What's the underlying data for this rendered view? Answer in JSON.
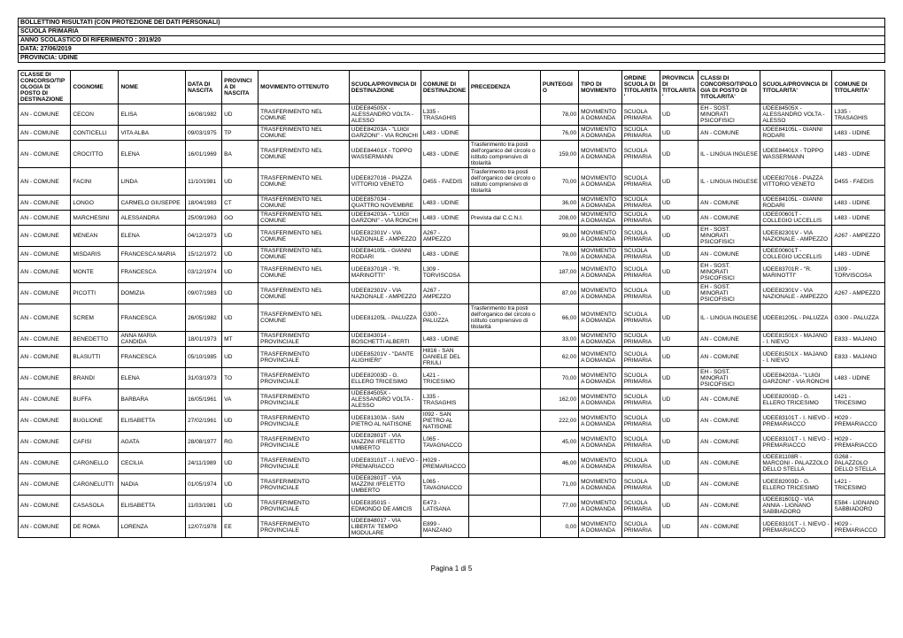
{
  "meta": [
    "BOLLETTINO RISULTATI (CON PROTEZIONE DEI DATI PERSONALI)",
    "SCUOLA PRIMARIA",
    "ANNO SCOLASTICO DI RIFERIMENTO : 2019/20",
    "DATA: 27/06/2019",
    "PROVINCIA: UDINE"
  ],
  "columns": [
    "CLASSE DI CONCORSO/TIPOLOGIA DI POSTO DI DESTINAZIONE",
    "COGNOME",
    "NOME",
    "DATA DI NASCITA",
    "PROVINCIA DI NASCITA",
    "MOVIMENTO OTTENUTO",
    "SCUOLA/PROVINCIA DI DESTINAZIONE",
    "COMUNE DI DESTINAZIONE",
    "PRECEDENZA",
    "PUNTEGGIO",
    "TIPO DI MOVIMENTO",
    "ORDINE SCUOLA DI TITOLARITA'",
    "PROVINCIA DI TITOLARITA'",
    "CLASSI DI CONCORSO/TIPOLOGIA DI POSTO DI TITOLARITA'",
    "SCUOLA/PROVINCIA DI TITOLARITA'",
    "COMUNE DI TITOLARITA'"
  ],
  "rows": [
    [
      "AN - COMUNE",
      "CECON",
      "ELISA",
      "16/08/1982",
      "UD",
      "TRASFERIMENTO NEL COMUNE",
      "UDEE84505X - ALESSANDRO VOLTA - ALESSO",
      "L335 - TRASAGHIS",
      "",
      "78,00",
      "MOVIMENTO A DOMANDA",
      "SCUOLA PRIMARIA",
      "UD",
      "EH - SOST. MINORATI PSICOFISICI",
      "UDEE84505X - ALESSANDRO VOLTA - ALESSO",
      "L335 - TRASAGHIS"
    ],
    [
      "AN - COMUNE",
      "CONTICELLI",
      "VITA ALBA",
      "09/03/1975",
      "TP",
      "TRASFERIMENTO NEL COMUNE",
      "UDEE84203A - \"LUIGI GARZONI\" - VIA RONCHI",
      "L483 - UDINE",
      "",
      "76,00",
      "MOVIMENTO A DOMANDA",
      "SCUOLA PRIMARIA",
      "UD",
      "AN - COMUNE",
      "UDEE84105L - GIANNI RODARI",
      "L483 - UDINE"
    ],
    [
      "AN - COMUNE",
      "CROCITTO",
      "ELENA",
      "16/01/1969",
      "BA",
      "TRASFERIMENTO NEL COMUNE",
      "UDEE84401X - TOPPO WASSERMANN",
      "L483 - UDINE",
      "Trasferimento tra posti dell'organico del circolo o istituto comprensivo di titolarità",
      "159,00",
      "MOVIMENTO A DOMANDA",
      "SCUOLA PRIMARIA",
      "UD",
      "IL - LINGUA INGLESE",
      "UDEE84401X - TOPPO WASSERMANN",
      "L483 - UDINE"
    ],
    [
      "AN - COMUNE",
      "FACINI",
      "LINDA",
      "11/10/1981",
      "UD",
      "TRASFERIMENTO NEL COMUNE",
      "UDEE827016 - PIAZZA VITTORIO VENETO",
      "D455 - FAEDIS",
      "Trasferimento tra posti dell'organico del circolo o istituto comprensivo di titolarità",
      "70,00",
      "MOVIMENTO A DOMANDA",
      "SCUOLA PRIMARIA",
      "UD",
      "IL - LINGUA INGLESE",
      "UDEE827016 - PIAZZA VITTORIO VENETO",
      "D455 - FAEDIS"
    ],
    [
      "AN - COMUNE",
      "LONGO",
      "CARMELO GIUSEPPE",
      "18/04/1983",
      "CT",
      "TRASFERIMENTO NEL COMUNE",
      "UDEE857034 - QUATTRO NOVEMBRE",
      "L483 - UDINE",
      "",
      "36,00",
      "MOVIMENTO A DOMANDA",
      "SCUOLA PRIMARIA",
      "UD",
      "AN - COMUNE",
      "UDEE84105L - GIANNI RODARI",
      "L483 - UDINE"
    ],
    [
      "AN - COMUNE",
      "MARCHESINI",
      "ALESSANDRA",
      "25/09/1963",
      "GO",
      "TRASFERIMENTO NEL COMUNE",
      "UDEE84203A - \"LUIGI GARZONI\" - VIA RONCHI",
      "L483 - UDINE",
      "Prevista dal C.C.N.I.",
      "208,00",
      "MOVIMENTO A DOMANDA",
      "SCUOLA PRIMARIA",
      "UD",
      "AN - COMUNE",
      "UDEE00601T - COLLEGIO UCCELLIS",
      "L483 - UDINE"
    ],
    [
      "AN - COMUNE",
      "MENEAN",
      "ELENA",
      "04/12/1973",
      "UD",
      "TRASFERIMENTO NEL COMUNE",
      "UDEE82301V - VIA NAZIONALE - AMPEZZO",
      "A267 - AMPEZZO",
      "",
      "99,00",
      "MOVIMENTO A DOMANDA",
      "SCUOLA PRIMARIA",
      "UD",
      "EH - SOST. MINORATI PSICOFISICI",
      "UDEE82301V - VIA NAZIONALE - AMPEZZO",
      "A267 - AMPEZZO"
    ],
    [
      "AN - COMUNE",
      "MISDARIS",
      "FRANCESCA MARIA",
      "15/12/1972",
      "UD",
      "TRASFERIMENTO NEL COMUNE",
      "UDEE84105L - GIANNI RODARI",
      "L483 - UDINE",
      "",
      "78,00",
      "MOVIMENTO A DOMANDA",
      "SCUOLA PRIMARIA",
      "UD",
      "AN - COMUNE",
      "UDEE00601T - COLLEGIO UCCELLIS",
      "L483 - UDINE"
    ],
    [
      "AN - COMUNE",
      "MONTE",
      "FRANCESCA",
      "03/12/1974",
      "UD",
      "TRASFERIMENTO NEL COMUNE",
      "UDEE83701R - \"R. MARINOTTI\"",
      "L309 - TORVISCOSA",
      "",
      "187,00",
      "MOVIMENTO A DOMANDA",
      "SCUOLA PRIMARIA",
      "UD",
      "EH - SOST. MINORATI PSICOFISICI",
      "UDEE83701R - \"R. MARINOTTI\"",
      "L309 - TORVISCOSA"
    ],
    [
      "AN - COMUNE",
      "PICOTTI",
      "DOMIZIA",
      "09/07/1983",
      "UD",
      "TRASFERIMENTO NEL COMUNE",
      "UDEE82301V - VIA NAZIONALE - AMPEZZO",
      "A267 - AMPEZZO",
      "",
      "87,00",
      "MOVIMENTO A DOMANDA",
      "SCUOLA PRIMARIA",
      "UD",
      "EH - SOST. MINORATI PSICOFISICI",
      "UDEE82301V - VIA NAZIONALE - AMPEZZO",
      "A267 - AMPEZZO"
    ],
    [
      "AN - COMUNE",
      "SCREM",
      "FRANCESCA",
      "26/05/1982",
      "UD",
      "TRASFERIMENTO NEL COMUNE",
      "UDEE81205L - PALUZZA",
      "G300 - PALUZZA",
      "Trasferimento tra posti dell'organico del circolo o istituto comprensivo di titolarità",
      "66,00",
      "MOVIMENTO A DOMANDA",
      "SCUOLA PRIMARIA",
      "UD",
      "IL - LINGUA INGLESE",
      "UDEE81205L - PALUZZA",
      "G300 - PALUZZA"
    ],
    [
      "AN - COMUNE",
      "BENEDETTO",
      "ANNA MARIA CANDIDA",
      "18/01/1973",
      "MT",
      "TRASFERIMENTO PROVINCIALE",
      "UDEE843014 - BOSCHETTI ALBERTI",
      "L483 - UDINE",
      "",
      "33,00",
      "MOVIMENTO A DOMANDA",
      "SCUOLA PRIMARIA",
      "UD",
      "AN - COMUNE",
      "UDEE81501X - MAJANO - I. NIEVO",
      "E833 - MAJANO"
    ],
    [
      "AN - COMUNE",
      "BLASUTTI",
      "FRANCESCA",
      "05/10/1985",
      "UD",
      "TRASFERIMENTO PROVINCIALE",
      "UDEE85201V - \"DANTE ALIGHIERI\"",
      "H816 - SAN DANIELE DEL FRIULI",
      "",
      "62,00",
      "MOVIMENTO A DOMANDA",
      "SCUOLA PRIMARIA",
      "UD",
      "AN - COMUNE",
      "UDEE81501X - MAJANO - I. NIEVO",
      "E833 - MAJANO"
    ],
    [
      "AN - COMUNE",
      "BRANDI",
      "ELENA",
      "31/03/1973",
      "TO",
      "TRASFERIMENTO PROVINCIALE",
      "UDEE82003D - G. ELLERO TRICESIMO",
      "L421 - TRICESIMO",
      "",
      "70,00",
      "MOVIMENTO A DOMANDA",
      "SCUOLA PRIMARIA",
      "UD",
      "EH - SOST. MINORATI PSICOFISICI",
      "UDEE84203A - \"LUIGI GARZONI\" - VIA RONCHI",
      "L483 - UDINE"
    ],
    [
      "AN - COMUNE",
      "BUFFA",
      "BARBARA",
      "16/05/1961",
      "VA",
      "TRASFERIMENTO PROVINCIALE",
      "UDEE84505X - ALESSANDRO VOLTA - ALESSO",
      "L335 - TRASAGHIS",
      "",
      "162,00",
      "MOVIMENTO A DOMANDA",
      "SCUOLA PRIMARIA",
      "UD",
      "AN - COMUNE",
      "UDEE82003D - G. ELLERO TRICESIMO",
      "L421 - TRICESIMO"
    ],
    [
      "AN - COMUNE",
      "BUGLIONE",
      "ELISABETTA",
      "27/02/1961",
      "UD",
      "TRASFERIMENTO PROVINCIALE",
      "UDEE81303A - SAN PIETRO AL NATISONE",
      "I092 - SAN PIETRO AL NATISONE",
      "",
      "222,00",
      "MOVIMENTO A DOMANDA",
      "SCUOLA PRIMARIA",
      "UD",
      "AN - COMUNE",
      "UDEE83101T - I. NIEVO - PREMARIACCO",
      "H029 - PREMARIACCO"
    ],
    [
      "AN - COMUNE",
      "CAFISI",
      "AGATA",
      "28/08/1977",
      "RG",
      "TRASFERIMENTO PROVINCIALE",
      "UDEE82801T - VIA MAZZINI /IFELETTO UMBERTO",
      "L065 - TAVAGNACCO",
      "",
      "45,00",
      "MOVIMENTO A DOMANDA",
      "SCUOLA PRIMARIA",
      "UD",
      "AN - COMUNE",
      "UDEE83101T - I. NIEVO - PREMARIACCO",
      "H029 - PREMARIACCO"
    ],
    [
      "AN - COMUNE",
      "CARGNELLO",
      "CECILIA",
      "24/11/1989",
      "UD",
      "TRASFERIMENTO PROVINCIALE",
      "UDEE83101T - I. NIEVO - PREMARIACCO",
      "H029 - PREMARIACCO",
      "",
      "46,00",
      "MOVIMENTO A DOMANDA",
      "SCUOLA PRIMARIA",
      "UD",
      "AN - COMUNE",
      "UDEE81108R - MARCONI - PALAZZOLO DELLO STELLA",
      "G268 - PALAZZOLO DELLO STELLA"
    ],
    [
      "AN - COMUNE",
      "CARGNELUTTI",
      "NADIA",
      "01/05/1974",
      "UD",
      "TRASFERIMENTO PROVINCIALE",
      "UDEE82801T - VIA MAZZINI /IFELETTO UMBERTO",
      "L065 - TAVAGNACCO",
      "",
      "71,00",
      "MOVIMENTO A DOMANDA",
      "SCUOLA PRIMARIA",
      "UD",
      "AN - COMUNE",
      "UDEE82003D - G. ELLERO TRICESIMO",
      "L421 - TRICESIMO"
    ],
    [
      "AN - COMUNE",
      "CASASOLA",
      "ELISABETTA",
      "11/03/1981",
      "UD",
      "TRASFERIMENTO PROVINCIALE",
      "UDEE835015 - EDMONDO DE AMICIS",
      "E473 - LATISANA",
      "",
      "77,00",
      "MOVIMENTO A DOMANDA",
      "SCUOLA PRIMARIA",
      "UD",
      "AN - COMUNE",
      "UDEE81601Q - VIA ANNIA - LIGNANO SABBIADORO",
      "E584 - LIGNANO SABBIADORO"
    ],
    [
      "AN - COMUNE",
      "DE ROMA",
      "LORENZA",
      "12/07/1978",
      "EE",
      "TRASFERIMENTO PROVINCIALE",
      "UDEE848017 - VIA LIBERTA' TEMPO MODULARE",
      "E899 - MANZANO",
      "",
      "0,00",
      "MOVIMENTO A DOMANDA",
      "SCUOLA PRIMARIA",
      "UD",
      "AN - COMUNE",
      "UDEE83101T - I. NIEVO - PREMARIACCO",
      "H029 - PREMARIACCO"
    ]
  ],
  "footer": "Pagina 1 di 5"
}
